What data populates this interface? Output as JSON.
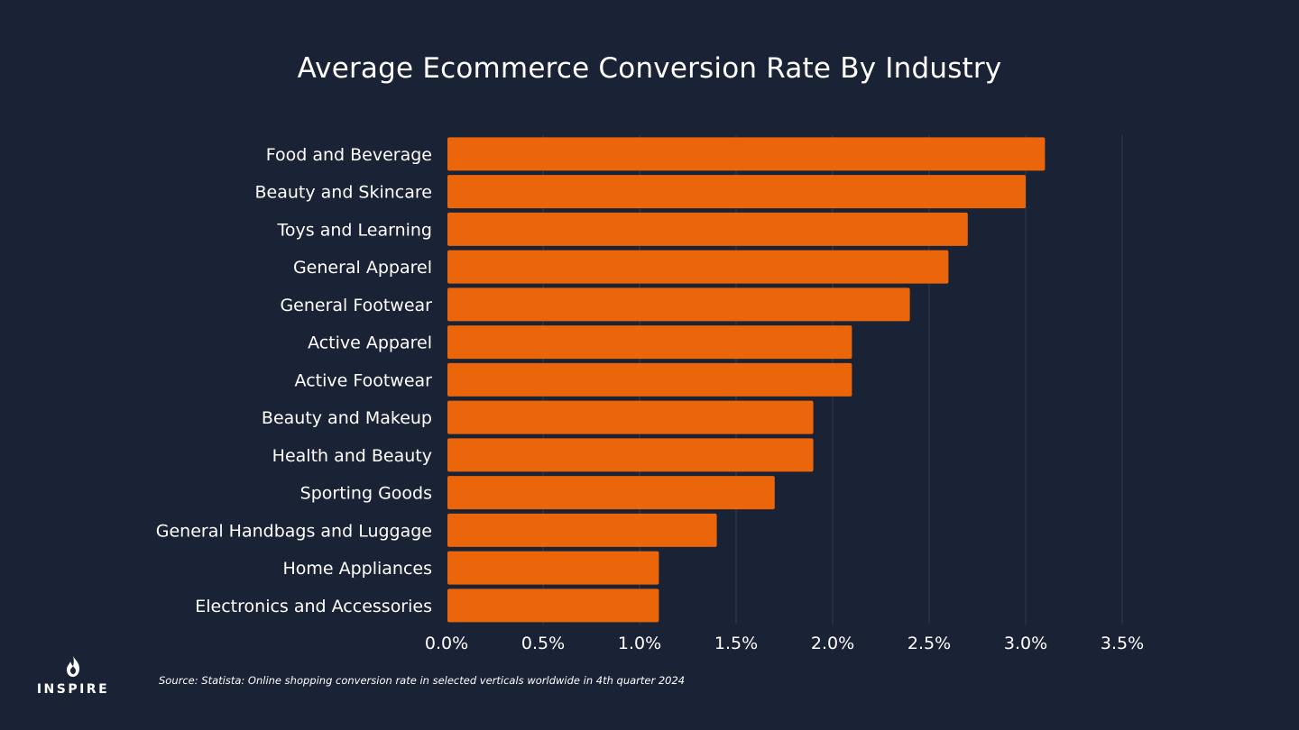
{
  "chart_data": {
    "type": "bar",
    "orientation": "horizontal",
    "title": "Average Ecommerce Conversion Rate By Industry",
    "categories": [
      "Food and Beverage",
      "Beauty and Skincare",
      "Toys and Learning",
      "General Apparel",
      "General Footwear",
      "Active Apparel",
      "Active Footwear",
      "Beauty and Makeup",
      "Health and Beauty",
      "Sporting Goods",
      "General Handbags and Luggage",
      "Home Appliances",
      "Electronics and Accessories"
    ],
    "values": [
      3.1,
      3.0,
      2.7,
      2.6,
      2.4,
      2.1,
      2.1,
      1.9,
      1.9,
      1.7,
      1.4,
      1.1,
      1.1
    ],
    "unit": "%",
    "xlim": [
      0,
      3.5
    ],
    "x_ticks": [
      0,
      0.5,
      1.0,
      1.5,
      2.0,
      2.5,
      3.0,
      3.5
    ],
    "x_tick_labels": [
      "0.0%",
      "0.5%",
      "1.0%",
      "1.5%",
      "2.0%",
      "2.5%",
      "3.0%",
      "3.5%"
    ],
    "grid": "vertical",
    "bar_color": "#eb650b",
    "grid_color": "#333c50"
  },
  "source": "Source: Statista: Online shopping conversion rate in selected verticals worldwide in 4th quarter 2024",
  "brand": {
    "name": "INSPIRE",
    "icon": "flame-icon"
  },
  "colors": {
    "background": "#1a2235",
    "text": "#ffffff"
  }
}
